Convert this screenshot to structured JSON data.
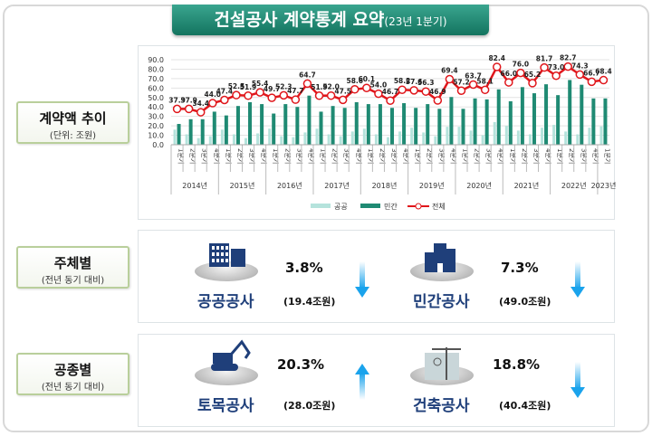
{
  "title": {
    "main": "건설공사 계약통계 요약",
    "sub": "(23년 1분기)"
  },
  "sections": [
    {
      "label": "계약액 추이",
      "sub": "(단위: 조원)"
    },
    {
      "label": "주체별",
      "sub": "(전년 동기 대비)"
    },
    {
      "label": "공종별",
      "sub": "(전년 동기 대비)"
    }
  ],
  "by_entity": [
    {
      "name": "공공공사",
      "pct": "3.8%",
      "amount": "(19.4조원)",
      "direction": "down",
      "icon": "office-building-icon"
    },
    {
      "name": "민간공사",
      "pct": "7.3%",
      "amount": "(49.0조원)",
      "direction": "down",
      "icon": "city-buildings-icon"
    }
  ],
  "by_type": [
    {
      "name": "토목공사",
      "pct": "20.3%",
      "amount": "(28.0조원)",
      "direction": "up",
      "icon": "excavator-icon"
    },
    {
      "name": "건축공사",
      "pct": "18.8%",
      "amount": "(40.4조원)",
      "direction": "down",
      "icon": "tower-crane-icon"
    }
  ],
  "colors": {
    "public": "#b5e3dc",
    "private": "#1f8a73",
    "total": "#e0161b",
    "up_down_arrow": "#1aa3ec",
    "name": "#1f3f7a"
  },
  "chart_data": {
    "type": "bar+line",
    "ylim": [
      0,
      90
    ],
    "yticks": [
      "0.0",
      "10.0",
      "20.0",
      "30.0",
      "40.0",
      "50.0",
      "60.0",
      "70.0",
      "80.0",
      "90.0"
    ],
    "grid": true,
    "legend": "bottom",
    "quarter_labels": [
      "1분기",
      "2분기",
      "3분기",
      "4분기"
    ],
    "years": [
      "2014년",
      "2015년",
      "2016년",
      "2017년",
      "2018년",
      "2019년",
      "2020년",
      "2021년",
      "2022년",
      "2023년"
    ],
    "series": [
      {
        "name": "공공",
        "type": "bar",
        "values": [
          16,
          11,
          7,
          9,
          16,
          11,
          7,
          12,
          17,
          9,
          8,
          13,
          17,
          11,
          9,
          14,
          17,
          11,
          8,
          14,
          18,
          13,
          9,
          19,
          19,
          15,
          10,
          24,
          20,
          15,
          11,
          18,
          21,
          14,
          11,
          18,
          19.4
        ]
      },
      {
        "name": "민간",
        "type": "bar",
        "values": [
          22,
          27,
          27,
          35,
          31,
          41,
          45,
          43,
          33,
          43,
          40,
          52,
          35,
          41,
          39,
          45,
          43,
          43,
          39,
          44,
          39,
          43,
          38,
          50.5,
          38,
          49,
          48,
          58.6,
          46,
          61,
          54.5,
          64,
          52.5,
          68.5,
          63.5,
          49,
          49.0
        ]
      },
      {
        "name": "전체",
        "type": "line",
        "values": [
          37.9,
          37.9,
          34.4,
          44.0,
          47.4,
          52.5,
          51.9,
          55.4,
          49.7,
          52.3,
          47.7,
          64.7,
          51.9,
          52.0,
          47.5,
          58.6,
          60.1,
          54.0,
          46.7,
          58.2,
          57.6,
          56.3,
          46.9,
          69.4,
          57.2,
          63.7,
          58.1,
          82.4,
          66.0,
          76.0,
          65.2,
          81.7,
          73.0,
          82.7,
          74.3,
          66.7,
          68.4
        ]
      }
    ]
  }
}
